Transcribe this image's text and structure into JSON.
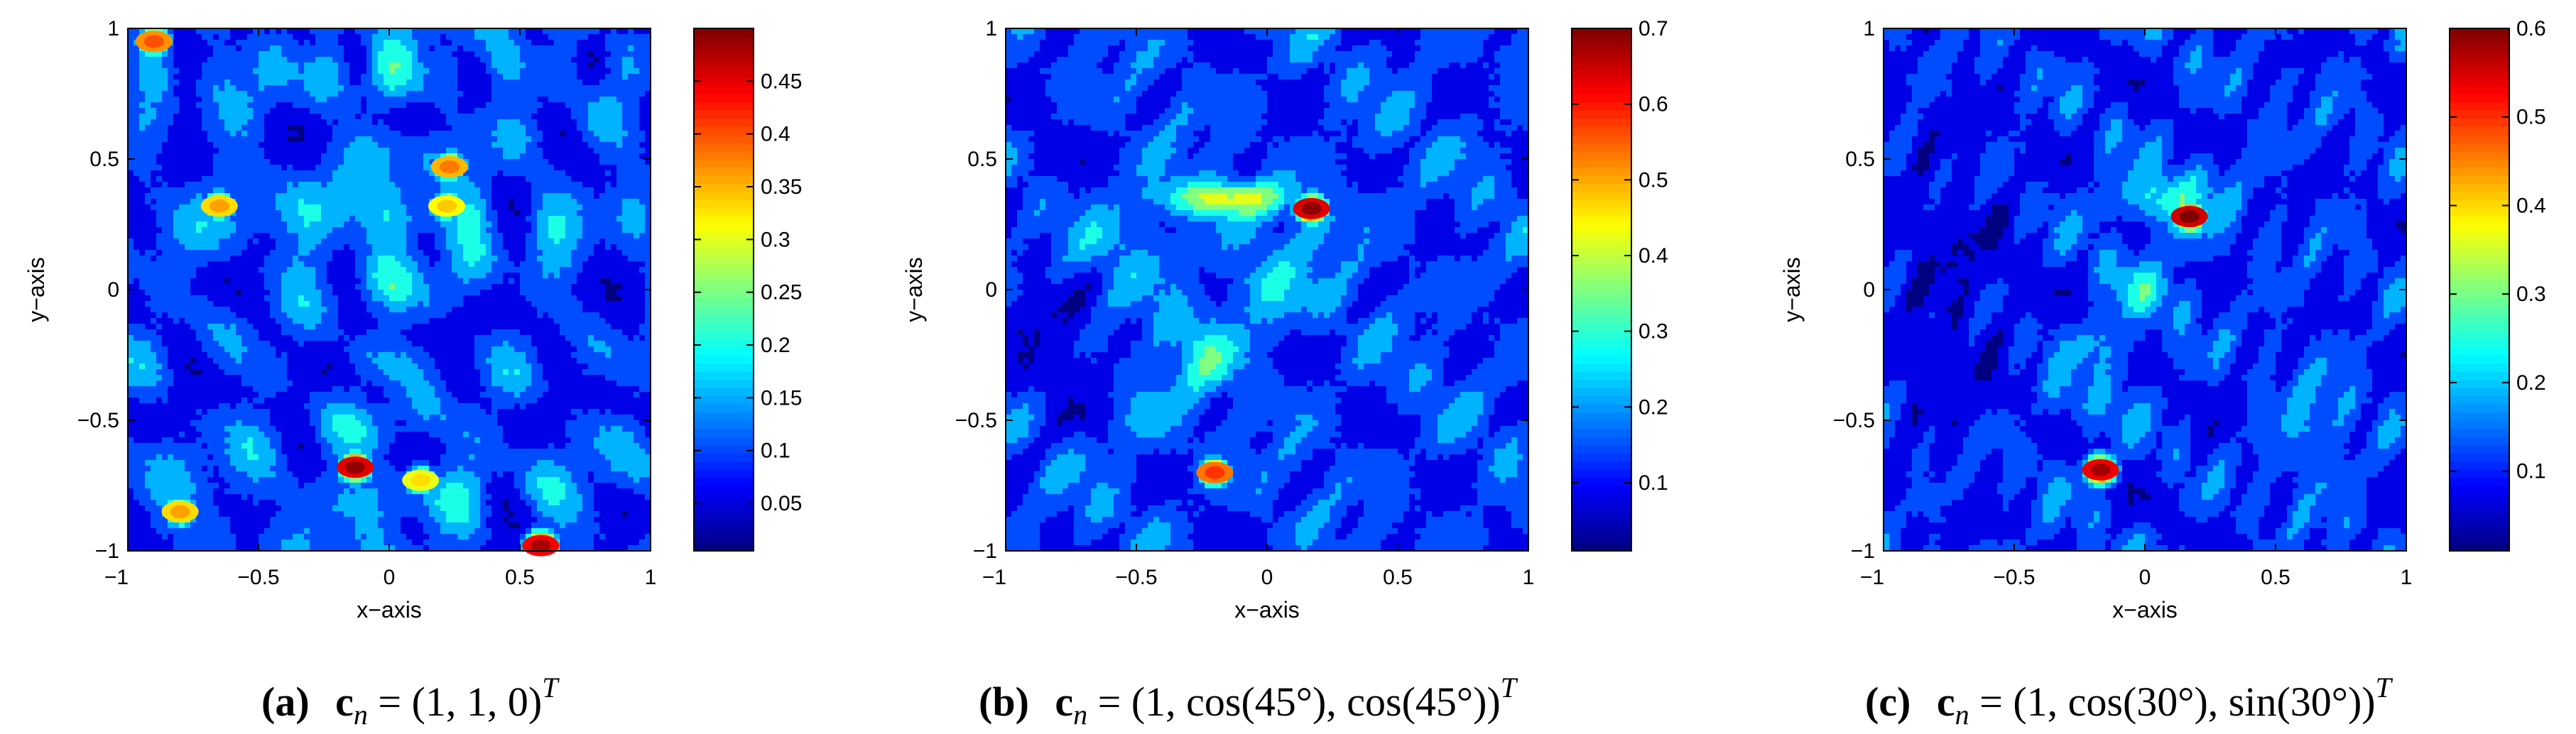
{
  "chart_data": [
    {
      "type": "heatmap",
      "panel": "a",
      "caption_label": "(a)",
      "caption_formula": "c",
      "caption_sub": "n",
      "caption_rest": " = (1, 1, 0)",
      "caption_sup": "T",
      "xlabel": "x−axis",
      "ylabel": "y−axis",
      "xlim": [
        -1,
        1
      ],
      "ylim": [
        -1,
        1
      ],
      "xticks": [
        "−1",
        "−0.5",
        "0",
        "0.5",
        "1"
      ],
      "yticks": [
        "1",
        "0.5",
        "0",
        "−0.5",
        "−1"
      ],
      "colorbar": {
        "min": 0.005,
        "max": 0.5,
        "ticks": [
          0.05,
          0.1,
          0.15,
          0.2,
          0.25,
          0.3,
          0.35,
          0.4,
          0.45
        ],
        "tick_labels": [
          "0.05",
          "0.1",
          "0.15",
          "0.2",
          "0.25",
          "0.3",
          "0.35",
          "0.4",
          "0.45"
        ]
      },
      "peaks": [
        {
          "x": -0.13,
          "y": -0.68,
          "value": 0.49
        },
        {
          "x": 0.58,
          "y": -0.98,
          "value": 0.48
        },
        {
          "x": -0.9,
          "y": 0.95,
          "value": 0.4
        },
        {
          "x": 0.23,
          "y": 0.47,
          "value": 0.38
        },
        {
          "x": -0.65,
          "y": 0.32,
          "value": 0.36
        },
        {
          "x": 0.22,
          "y": 0.32,
          "value": 0.34
        },
        {
          "x": -0.8,
          "y": -0.85,
          "value": 0.36
        },
        {
          "x": 0.12,
          "y": -0.73,
          "value": 0.33
        }
      ]
    },
    {
      "type": "heatmap",
      "panel": "b",
      "caption_label": "(b)",
      "caption_formula": "c",
      "caption_sub": "n",
      "caption_rest": " = (1, cos(45°), cos(45°))",
      "caption_sup": "T",
      "xlabel": "x−axis",
      "ylabel": "y−axis",
      "xlim": [
        -1,
        1
      ],
      "ylim": [
        -1,
        1
      ],
      "xticks": [
        "−1",
        "−0.5",
        "0",
        "0.5",
        "1"
      ],
      "yticks": [
        "1",
        "0.5",
        "0",
        "−0.5",
        "−1"
      ],
      "colorbar": {
        "min": 0.01,
        "max": 0.7,
        "ticks": [
          0.1,
          0.2,
          0.3,
          0.4,
          0.5,
          0.6,
          0.7
        ],
        "tick_labels": [
          "0.1",
          "0.2",
          "0.3",
          "0.4",
          "0.5",
          "0.6",
          "0.7"
        ]
      },
      "peaks": [
        {
          "x": 0.17,
          "y": 0.31,
          "value": 0.69
        },
        {
          "x": -0.2,
          "y": -0.7,
          "value": 0.58
        }
      ]
    },
    {
      "type": "heatmap",
      "panel": "c",
      "caption_label": "(c)",
      "caption_formula": "c",
      "caption_sub": "n",
      "caption_rest": " = (1, cos(30°), sin(30°))",
      "caption_sup": "T",
      "xlabel": "x−axis",
      "ylabel": "y−axis",
      "xlim": [
        -1,
        1
      ],
      "ylim": [
        -1,
        1
      ],
      "xticks": [
        "−1",
        "−0.5",
        "0",
        "0.5",
        "1"
      ],
      "yticks": [
        "1",
        "0.5",
        "0",
        "−0.5",
        "−1"
      ],
      "colorbar": {
        "min": 0.01,
        "max": 0.6,
        "ticks": [
          0.1,
          0.2,
          0.3,
          0.4,
          0.5,
          0.6
        ],
        "tick_labels": [
          "0.1",
          "0.2",
          "0.3",
          "0.4",
          "0.5",
          "0.6"
        ]
      },
      "peaks": [
        {
          "x": 0.17,
          "y": 0.28,
          "value": 0.6
        },
        {
          "x": -0.17,
          "y": -0.69,
          "value": 0.58
        }
      ]
    }
  ]
}
